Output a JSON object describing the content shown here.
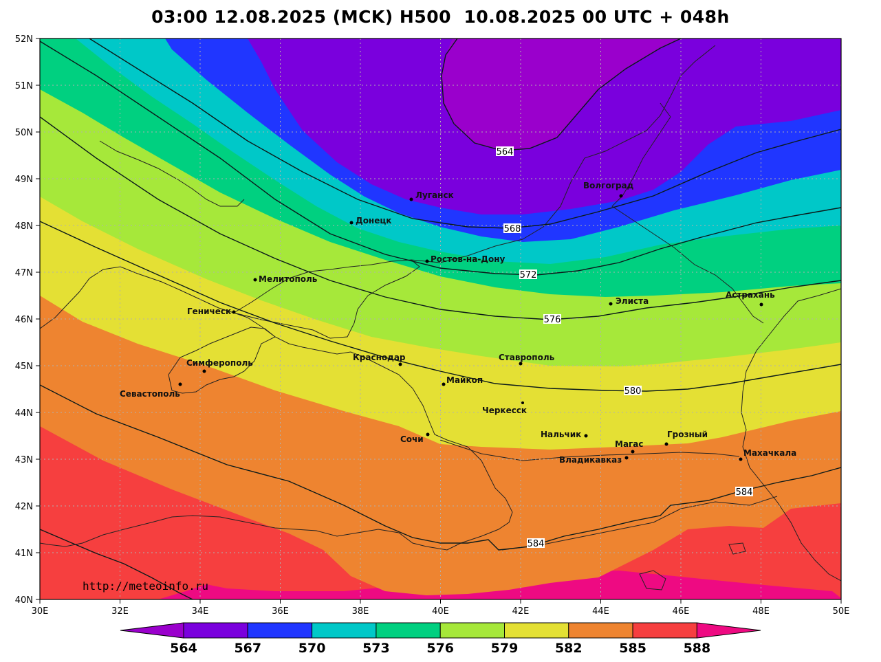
{
  "title": "03:00 12.08.2025 (MCK) H500  10.08.2025 00 UTC + 048h",
  "credit": "http://meteoinfo.ru",
  "axes": {
    "lat_labels": [
      "40N",
      "41N",
      "42N",
      "43N",
      "44N",
      "45N",
      "46N",
      "47N",
      "48N",
      "49N",
      "50N",
      "51N",
      "52N"
    ],
    "lon_labels": [
      "30E",
      "32E",
      "34E",
      "36E",
      "38E",
      "40E",
      "42E",
      "44E",
      "46E",
      "48E",
      "50E"
    ]
  },
  "colors": {
    "c560": "#9a00cc",
    "c564": "#7a00dd",
    "c567": "#2036ff",
    "c570": "#00c8c8",
    "c573": "#00d080",
    "c576": "#a6e83a",
    "c579": "#e4e034",
    "c582": "#ee8430",
    "c585": "#f63f3f",
    "c588": "#ee0a82"
  },
  "contours": [
    {
      "label": "564"
    },
    {
      "label": "568"
    },
    {
      "label": "572"
    },
    {
      "label": "576"
    },
    {
      "label": "580"
    },
    {
      "label": "584"
    },
    {
      "label": "584"
    }
  ],
  "cities": [
    {
      "name": "Луганск"
    },
    {
      "name": "Волгоград"
    },
    {
      "name": "Донецк"
    },
    {
      "name": "Ростов-на-Дону"
    },
    {
      "name": "Мелитополь"
    },
    {
      "name": "Элиста"
    },
    {
      "name": "Астрахань"
    },
    {
      "name": "Геническ"
    },
    {
      "name": "Симферополь"
    },
    {
      "name": "Краснодар"
    },
    {
      "name": "Ставрополь"
    },
    {
      "name": "Майкоп"
    },
    {
      "name": "Севастополь"
    },
    {
      "name": "Черкесск"
    },
    {
      "name": "Нальчик"
    },
    {
      "name": "Сочи"
    },
    {
      "name": "Магас"
    },
    {
      "name": "Грозный"
    },
    {
      "name": "Владикавказ"
    },
    {
      "name": "Махачкала"
    }
  ],
  "colorbar": {
    "labels": [
      "564",
      "567",
      "570",
      "573",
      "576",
      "579",
      "582",
      "585",
      "588"
    ]
  }
}
